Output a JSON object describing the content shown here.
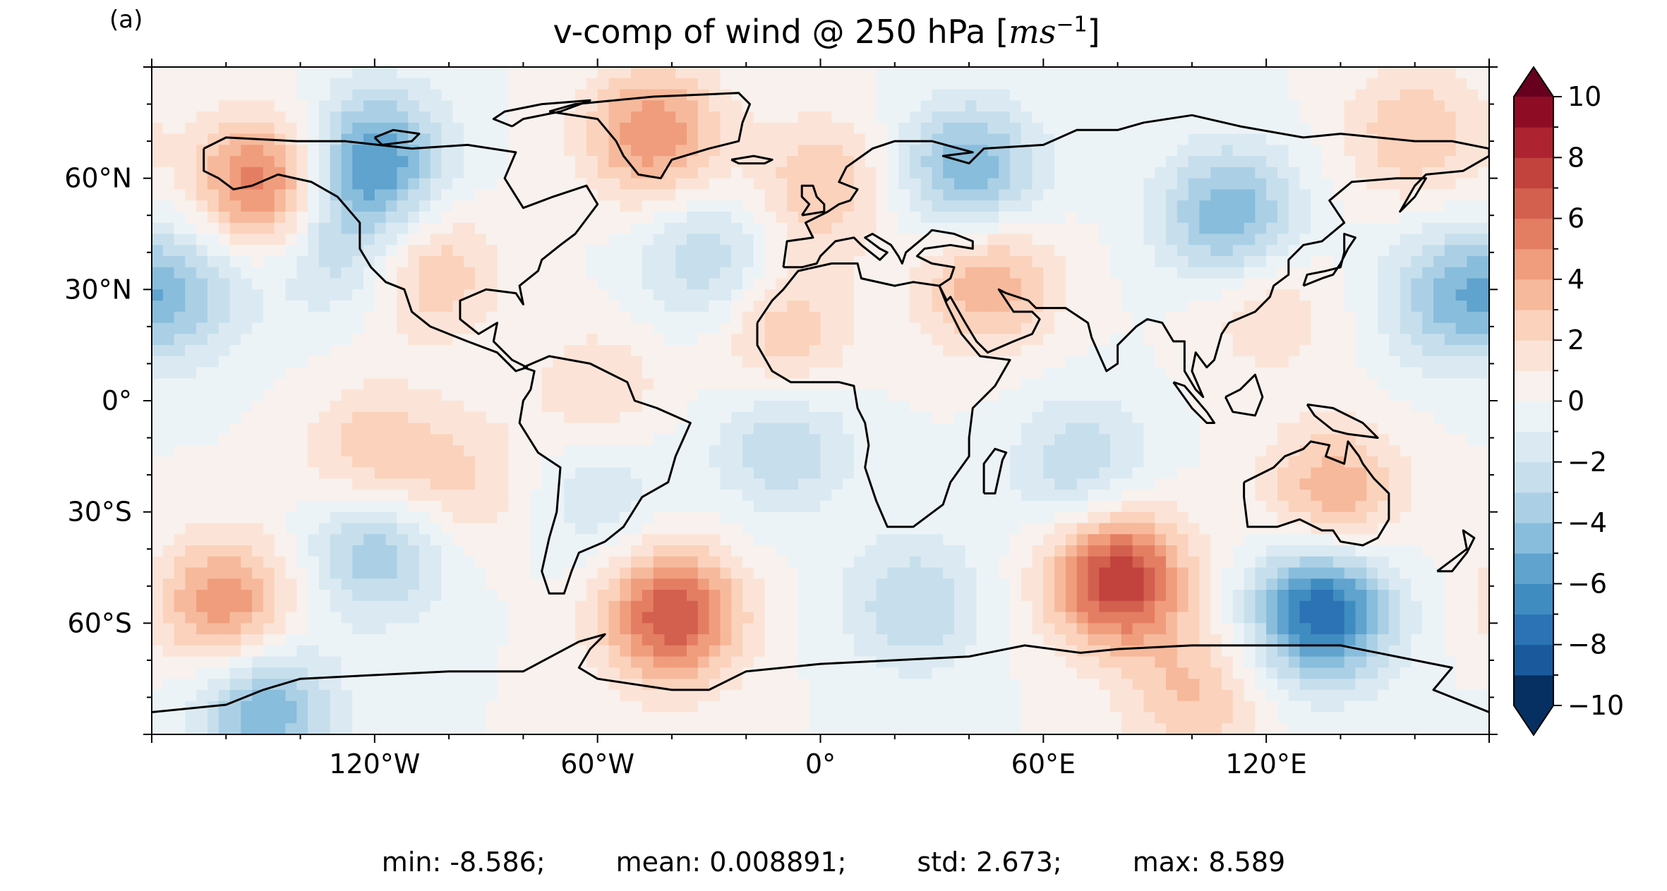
{
  "panel_label": "(a)",
  "title": {
    "main": "v-comp of wind @ 250 hPa [",
    "units_base": "ms",
    "units_exp": "−1",
    "close": "]"
  },
  "stats": {
    "min": "min: -8.586;",
    "mean": "mean: 0.008891;",
    "std": "std: 2.673;",
    "max": "max: 8.589"
  },
  "chart_data": {
    "type": "heatmap",
    "title": "v-comp of wind @ 250 hPa [ms−1]",
    "projection": "PlateCarree",
    "xlim": [
      -180,
      180
    ],
    "ylim": [
      -90,
      90
    ],
    "x_ticks": [
      {
        "value": -120,
        "label": "120°W"
      },
      {
        "value": -60,
        "label": "60°W"
      },
      {
        "value": 0,
        "label": "0°"
      },
      {
        "value": 60,
        "label": "60°E"
      },
      {
        "value": 120,
        "label": "120°E"
      }
    ],
    "y_ticks": [
      {
        "value": 60,
        "label": "60°N"
      },
      {
        "value": 30,
        "label": "30°N"
      },
      {
        "value": 0,
        "label": "0°"
      },
      {
        "value": -30,
        "label": "30°S"
      },
      {
        "value": -60,
        "label": "60°S"
      }
    ],
    "colorbar": {
      "cmap": "RdBu_r",
      "min": -10,
      "max": 10,
      "step": 1,
      "extend": "both",
      "ticks": [
        10,
        8,
        6,
        4,
        2,
        0,
        -2,
        -4,
        -6,
        -8,
        -10
      ],
      "tick_labels": [
        "10",
        "8",
        "6",
        "4",
        "2",
        "0",
        "−2",
        "−4",
        "−6",
        "−8",
        "−10"
      ],
      "colors": [
        "#053061",
        "#1a5a9c",
        "#2b73b4",
        "#3f8cc1",
        "#5fa3ce",
        "#88bddc",
        "#abd0e6",
        "#c7dfec",
        "#dbeaf2",
        "#ecf3f7",
        "#f8f1ed",
        "#fbe4d7",
        "#fbd2bc",
        "#f6b99b",
        "#f09d7d",
        "#e47e63",
        "#d3604e",
        "#c2423e",
        "#ad232f",
        "#8e0d25",
        "#67001f"
      ]
    },
    "anomalies": [
      {
        "lon": -150,
        "lat": 58,
        "value": 6
      },
      {
        "lon": -120,
        "lat": 65,
        "value": -6
      },
      {
        "lon": -130,
        "lat": 42,
        "value": -3
      },
      {
        "lon": -105,
        "lat": 35,
        "value": 3
      },
      {
        "lon": -170,
        "lat": 30,
        "value": -3
      },
      {
        "lon": -45,
        "lat": 72,
        "value": 5
      },
      {
        "lon": -30,
        "lat": 38,
        "value": -3
      },
      {
        "lon": 0,
        "lat": 58,
        "value": 3
      },
      {
        "lon": 40,
        "lat": 62,
        "value": -5
      },
      {
        "lon": 110,
        "lat": 50,
        "value": -5
      },
      {
        "lon": 160,
        "lat": 72,
        "value": 3
      },
      {
        "lon": 45,
        "lat": 32,
        "value": 4
      },
      {
        "lon": -10,
        "lat": 18,
        "value": 3
      },
      {
        "lon": 120,
        "lat": 25,
        "value": 2
      },
      {
        "lon": 170,
        "lat": 28,
        "value": -4
      },
      {
        "lon": -120,
        "lat": -15,
        "value": 3
      },
      {
        "lon": -95,
        "lat": -22,
        "value": 2
      },
      {
        "lon": -120,
        "lat": -40,
        "value": -4
      },
      {
        "lon": -160,
        "lat": -55,
        "value": 5
      },
      {
        "lon": -40,
        "lat": -58,
        "value": 7
      },
      {
        "lon": -10,
        "lat": -12,
        "value": -3
      },
      {
        "lon": 70,
        "lat": -18,
        "value": -3
      },
      {
        "lon": 80,
        "lat": -48,
        "value": 8
      },
      {
        "lon": 25,
        "lat": -55,
        "value": -3
      },
      {
        "lon": 135,
        "lat": -57,
        "value": -8
      },
      {
        "lon": 138,
        "lat": -25,
        "value": 4
      },
      {
        "lon": -150,
        "lat": -83,
        "value": -5
      },
      {
        "lon": 100,
        "lat": -80,
        "value": 3
      },
      {
        "lon": -60,
        "lat": 2,
        "value": 2
      },
      {
        "lon": -60,
        "lat": -25,
        "value": -2
      }
    ]
  }
}
